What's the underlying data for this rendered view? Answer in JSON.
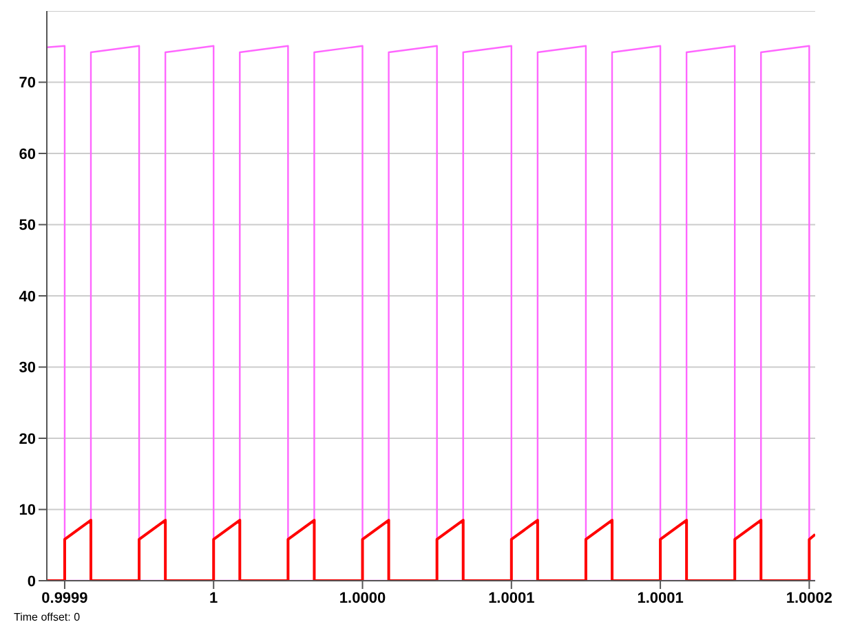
{
  "chart_data": {
    "type": "line",
    "annotations": [
      "Time offset:  0"
    ],
    "xlim": [
      0.999944,
      1.000202
    ],
    "xticks": [
      {
        "value": 0.99995,
        "label": "0.9999"
      },
      {
        "value": 1,
        "label": "1"
      },
      {
        "value": 1.00005,
        "label": "1.0000"
      },
      {
        "value": 1.0001,
        "label": "1.0001"
      },
      {
        "value": 1.00015,
        "label": "1.0001"
      },
      {
        "value": 1.0002,
        "label": "1.0002"
      }
    ],
    "ylim": [
      0,
      80
    ],
    "yticks": [
      0,
      10,
      20,
      30,
      40,
      50,
      60,
      70
    ],
    "grid": "y",
    "marker": "none",
    "line_style": "solid",
    "series": [
      {
        "color": "#ff66ff",
        "x": [
          0.999944,
          0.99995,
          0.99995,
          0.9999588,
          0.9999588,
          0.999975,
          0.999975,
          0.9999838,
          0.9999838,
          1.0,
          1.0,
          1.0000088,
          1.0000088,
          1.000025,
          1.000025,
          1.0000338,
          1.0000338,
          1.00005,
          1.00005,
          1.0000588,
          1.0000588,
          1.000075,
          1.000075,
          1.0000838,
          1.0000838,
          1.0001,
          1.0001,
          1.0001088,
          1.0001088,
          1.000125,
          1.000125,
          1.0001338,
          1.0001338,
          1.00015,
          1.00015,
          1.0001588,
          1.0001588,
          1.000175,
          1.000175,
          1.0001838,
          1.0001838,
          1.0002,
          1.0002,
          1.000202
        ],
        "values": [
          74.9,
          75.1,
          0,
          0,
          74.2,
          75.1,
          0,
          0,
          74.2,
          75.1,
          0,
          0,
          74.2,
          75.1,
          0,
          0,
          74.2,
          75.1,
          0,
          0,
          74.2,
          75.1,
          0,
          0,
          74.2,
          75.1,
          0,
          0,
          74.2,
          75.1,
          0,
          0,
          74.2,
          75.1,
          0,
          0,
          74.2,
          75.1,
          0,
          0,
          74.2,
          75.1,
          0,
          0
        ]
      },
      {
        "color": "#ff0000",
        "x": [
          0.999944,
          0.99995,
          0.99995,
          0.9999588,
          0.9999588,
          0.999975,
          0.999975,
          0.9999838,
          0.9999838,
          1.0,
          1.0,
          1.0000088,
          1.0000088,
          1.000025,
          1.000025,
          1.0000338,
          1.0000338,
          1.00005,
          1.00005,
          1.0000588,
          1.0000588,
          1.000075,
          1.000075,
          1.0000838,
          1.0000838,
          1.0001,
          1.0001,
          1.0001088,
          1.0001088,
          1.000125,
          1.000125,
          1.0001338,
          1.0001338,
          1.00015,
          1.00015,
          1.0001588,
          1.0001588,
          1.000175,
          1.000175,
          1.0001838,
          1.0001838,
          1.0002,
          1.0002,
          1.000202
        ],
        "values": [
          0,
          0,
          5.8,
          8.5,
          0,
          0,
          5.8,
          8.5,
          0,
          0,
          5.8,
          8.5,
          0,
          0,
          5.8,
          8.5,
          0,
          0,
          5.8,
          8.5,
          0,
          0,
          5.8,
          8.5,
          0,
          0,
          5.8,
          8.5,
          0,
          0,
          5.8,
          8.5,
          0,
          0,
          5.8,
          8.5,
          0,
          0,
          5.8,
          8.5,
          0,
          0,
          5.8,
          6.5
        ]
      }
    ]
  }
}
